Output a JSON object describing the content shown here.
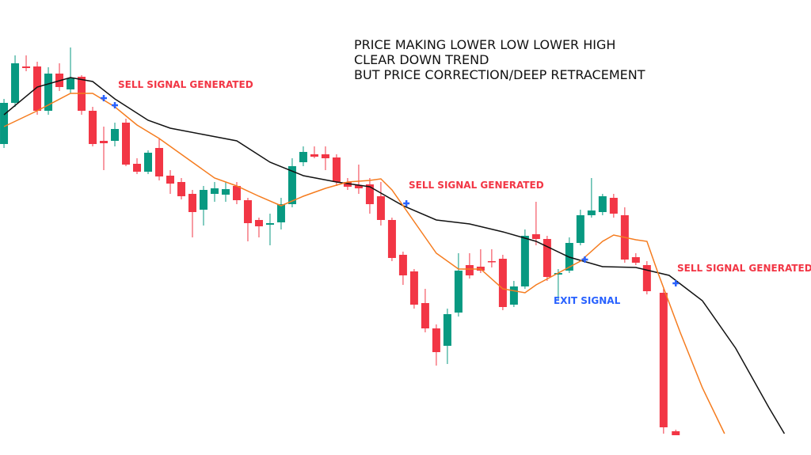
{
  "chart_data": {
    "type": "candlestick",
    "annotation": [
      "PRICE MAKING LOWER LOW LOWER HIGH",
      "CLEAR DOWN TREND",
      "BUT PRICE CORRECTION/DEEP RETRACEMENT"
    ],
    "labels": [
      "SELL SIGNAL GENERATED",
      "SELL SIGNAL GENERATED",
      "SELL SIGNAL GENERATED",
      "EXIT SIGNAL"
    ],
    "up_color": "#089981",
    "down_color": "#f23645",
    "xlim": [
      -0.36,
      72.8
    ],
    "ylim": [
      0,
      575
    ],
    "x": [
      0,
      1,
      2,
      3,
      4,
      5,
      6,
      7,
      8,
      9,
      10,
      11,
      12,
      13,
      14,
      15,
      16,
      17,
      18,
      19,
      20,
      21,
      22,
      23,
      24,
      25,
      26,
      27,
      28,
      29,
      30,
      31,
      32,
      33,
      34,
      35,
      36,
      37,
      38,
      39,
      40,
      41,
      42,
      43,
      44,
      45,
      46,
      47,
      48,
      49,
      50,
      51,
      52,
      53,
      54,
      55,
      56,
      57,
      58,
      59.5,
      60.6
    ],
    "open": [
      393,
      445,
      491,
      491,
      435,
      482,
      462,
      478,
      435,
      397,
      397,
      420,
      368,
      358,
      388,
      353,
      345,
      330,
      310,
      330,
      329,
      340,
      322,
      297,
      291,
      294,
      317,
      370,
      380,
      380,
      376,
      345,
      341,
      342,
      327,
      297,
      253,
      232,
      192,
      160,
      138,
      180,
      240,
      238,
      245,
      248,
      190,
      213,
      279,
      273,
      228,
      233,
      268,
      303,
      307,
      325,
      303,
      250,
      240,
      205,
      30
    ],
    "high": [
      450,
      505,
      505,
      497,
      490,
      495,
      515,
      480,
      440,
      415,
      420,
      425,
      375,
      385,
      400,
      360,
      350,
      335,
      340,
      345,
      345,
      345,
      325,
      300,
      305,
      325,
      375,
      390,
      390,
      390,
      380,
      350,
      367,
      350,
      345,
      300,
      257,
      235,
      210,
      165,
      185,
      255,
      255,
      260,
      260,
      253,
      220,
      285,
      320,
      277,
      235,
      275,
      310,
      350,
      330,
      330,
      313,
      255,
      245,
      210,
      32
    ],
    "low": [
      388,
      440,
      485,
      430,
      430,
      460,
      457,
      430,
      390,
      360,
      390,
      365,
      355,
      355,
      347,
      330,
      323,
      275,
      290,
      320,
      320,
      317,
      270,
      275,
      265,
      285,
      313,
      365,
      375,
      360,
      340,
      335,
      330,
      305,
      290,
      245,
      215,
      185,
      155,
      113,
      115,
      175,
      223,
      230,
      237,
      183,
      187,
      210,
      265,
      220,
      197,
      230,
      265,
      300,
      303,
      300,
      243,
      240,
      203,
      27,
      25
    ],
    "close": [
      445,
      495,
      489,
      435,
      482,
      465,
      476,
      435,
      393,
      394,
      412,
      367,
      358,
      382,
      352,
      343,
      327,
      307,
      335,
      337,
      336,
      322,
      293,
      289,
      293,
      317,
      365,
      383,
      377,
      375,
      345,
      339,
      337,
      317,
      297,
      249,
      227,
      190,
      160,
      130,
      178,
      233,
      227,
      233,
      244,
      187,
      213,
      277,
      273,
      225,
      230,
      268,
      303,
      309,
      327,
      305,
      247,
      243,
      207,
      35,
      25
    ],
    "lines": [
      {
        "color": "#111111",
        "x": [
          0,
          3,
          6,
          8,
          10,
          13,
          15,
          18,
          21,
          24,
          27,
          30,
          33,
          36,
          39,
          42,
          45,
          48,
          51,
          54,
          57,
          60,
          63,
          66,
          69,
          70.4
        ],
        "values": [
          430,
          465,
          477,
          472,
          450,
          423,
          413,
          405,
          397,
          370,
          353,
          345,
          339,
          315,
          297,
          292,
          282,
          270,
          250,
          238,
          237,
          227,
          195,
          135,
          60,
          27
        ]
      },
      {
        "color": "#f57c1f",
        "x": [
          0,
          3,
          6,
          8,
          10,
          12,
          14,
          15,
          17,
          19,
          21,
          23,
          25,
          27,
          29,
          31,
          33,
          34,
          35,
          37,
          39,
          41,
          43,
          45,
          47,
          48,
          50,
          52,
          54,
          55,
          57,
          58,
          59,
          61,
          63,
          65
        ],
        "values": [
          415,
          435,
          457,
          457,
          440,
          417,
          400,
          390,
          370,
          350,
          340,
          327,
          315,
          327,
          337,
          345,
          347,
          349,
          335,
          295,
          255,
          235,
          235,
          210,
          205,
          215,
          230,
          245,
          270,
          278,
          272,
          270,
          230,
          155,
          85,
          27
        ]
      }
    ],
    "signals": {
      "color": "#2962ff",
      "x": [
        9,
        10,
        36.3,
        52.4,
        60.6
      ],
      "values": [
        451,
        442,
        318,
        247,
        217
      ]
    }
  }
}
